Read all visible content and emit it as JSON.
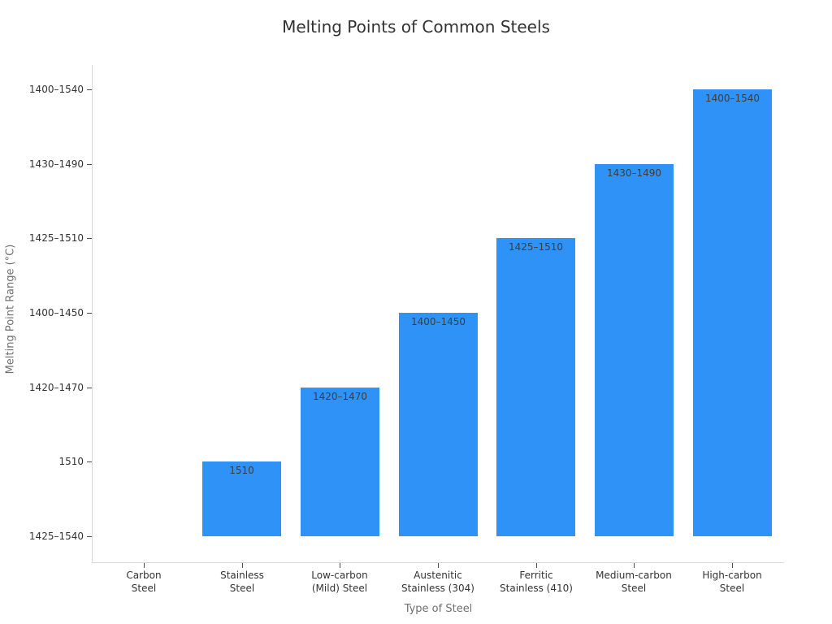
{
  "chart": {
    "title": "Melting Points of Common Steels",
    "xlabel": "Type of Steel",
    "ylabel": "Melting Point Range (°C)"
  },
  "chart_data": {
    "type": "bar",
    "title": "Melting Points of Common Steels",
    "xlabel": "Type of Steel",
    "ylabel": "Melting Point Range (°C)",
    "categories": [
      "Carbon Steel",
      "Stainless Steel",
      "Low-carbon (Mild) Steel",
      "Austenitic Stainless (304)",
      "Ferritic Stainless (410)",
      "Medium-carbon Steel",
      "High-carbon Steel"
    ],
    "category_label_lines": [
      [
        "Carbon",
        "Steel"
      ],
      [
        "Stainless",
        "Steel"
      ],
      [
        "Low-carbon",
        "(Mild) Steel"
      ],
      [
        "Austenitic",
        "Stainless (304)"
      ],
      [
        "Ferritic",
        "Stainless (410)"
      ],
      [
        "Medium-carbon",
        "Steel"
      ],
      [
        "High-carbon",
        "Steel"
      ]
    ],
    "values": [
      "1425–1540",
      "1510",
      "1420–1470",
      "1400–1450",
      "1425–1510",
      "1430–1490",
      "1400–1540"
    ],
    "bar_value_labels": [
      "",
      "1510",
      "1420–1470",
      "1400–1450",
      "1425–1510",
      "1430–1490",
      "1400–1540"
    ],
    "y_axis_type": "categorical",
    "y_tick_labels_bottom_to_top": [
      "1425–1540",
      "1510",
      "1420–1470",
      "1400–1450",
      "1425–1510",
      "1430–1490",
      "1400–1540"
    ],
    "grid": false,
    "legend": null,
    "bar_color": "#2f92f6",
    "bar_label_position": "inside-top"
  }
}
